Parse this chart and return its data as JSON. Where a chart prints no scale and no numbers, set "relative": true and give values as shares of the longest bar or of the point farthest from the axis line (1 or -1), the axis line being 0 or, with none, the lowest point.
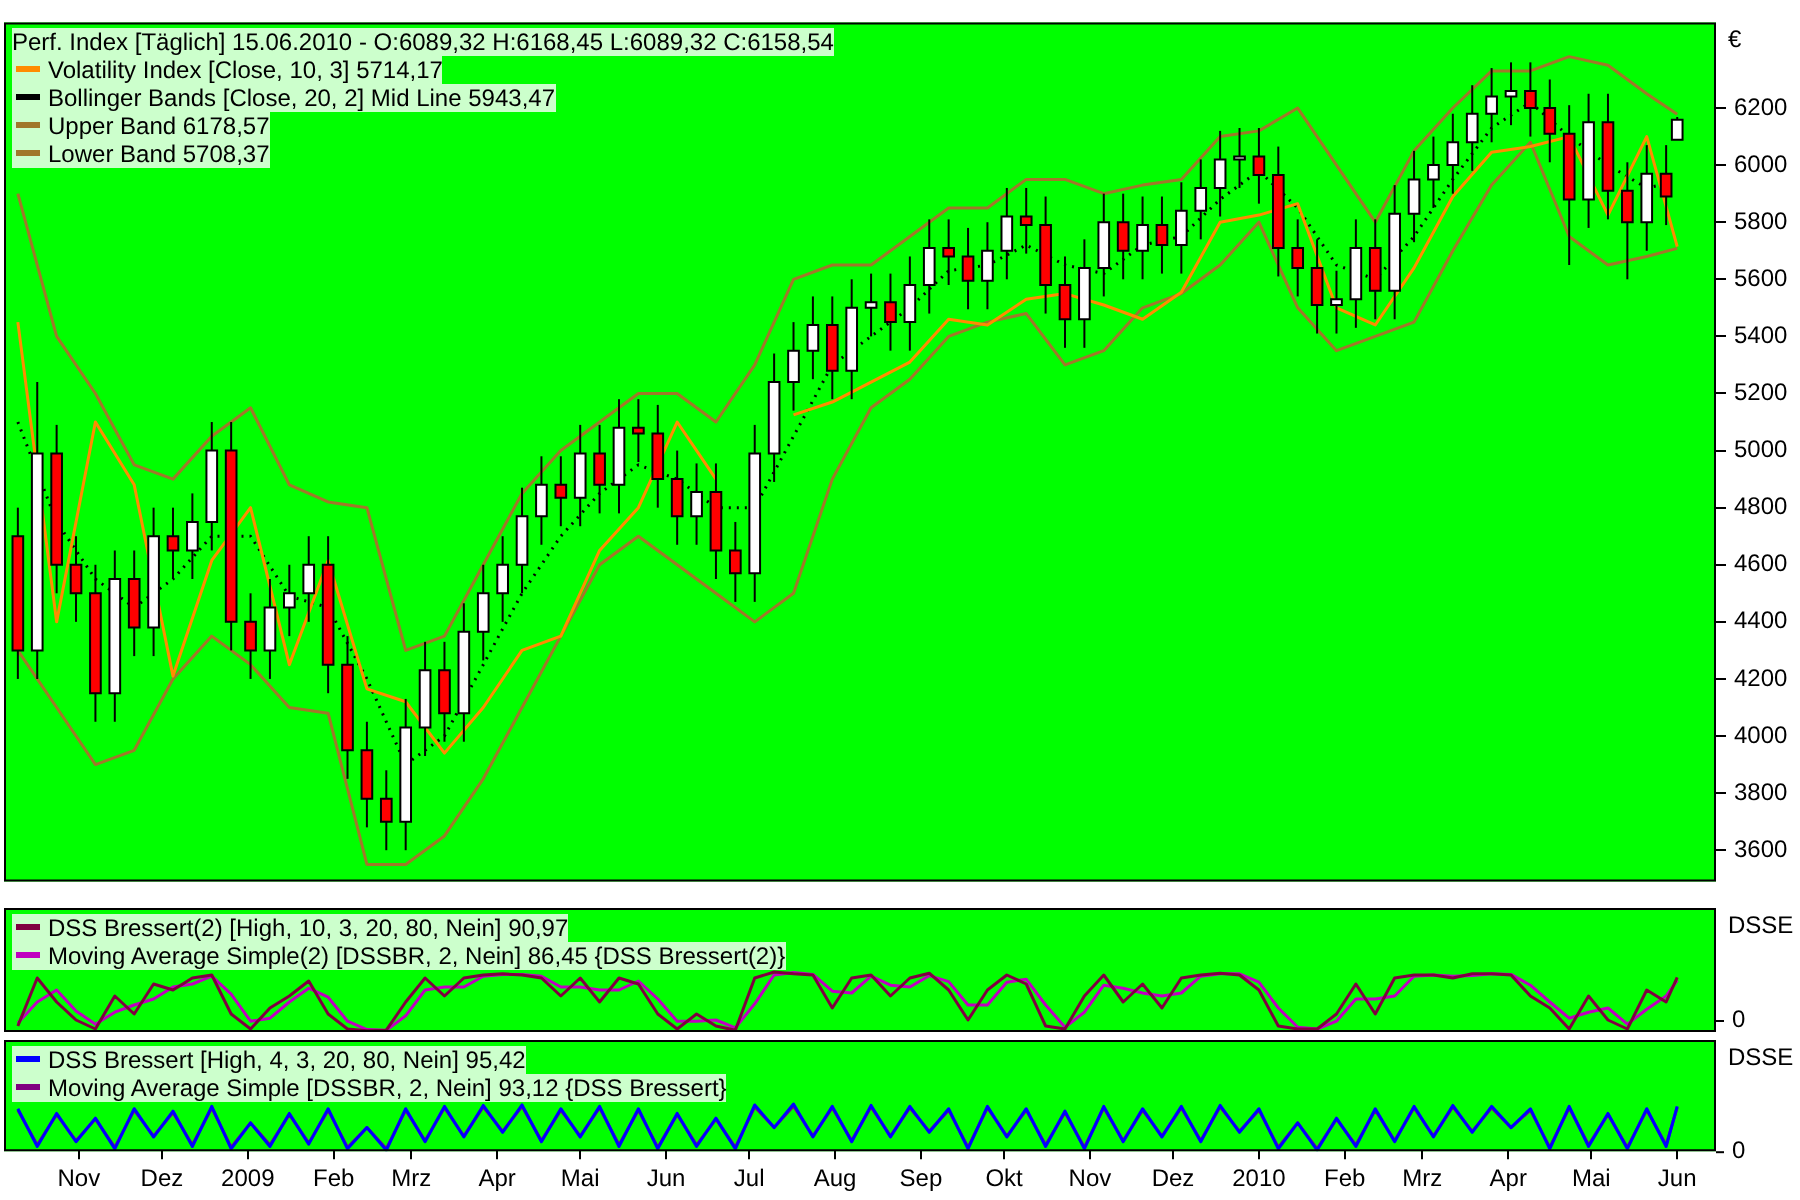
{
  "chart_data": [
    {
      "type": "candlestick",
      "title": "Perf. Index [Täglich] 15.06.2010 - O:6089,32 H:6168,45 L:6089,32 C:6158,54",
      "ylabel": "€",
      "legend": "top left",
      "tick_labels": "y",
      "xlim": [
        "2008-10-19",
        "2010-06-29"
      ],
      "ylim": [
        3490,
        6500
      ],
      "yticks": [
        3600,
        3800,
        4000,
        4200,
        4400,
        4600,
        4800,
        5000,
        5200,
        5400,
        5600,
        5800,
        6000,
        6200
      ],
      "x": [
        "2008-10-24",
        "2008-10-31",
        "2008-11-07",
        "2008-11-14",
        "2008-11-21",
        "2008-11-28",
        "2008-12-05",
        "2008-12-12",
        "2008-12-19",
        "2008-12-26",
        "2009-01-02",
        "2009-01-09",
        "2009-01-16",
        "2009-01-23",
        "2009-01-30",
        "2009-02-06",
        "2009-02-13",
        "2009-02-20",
        "2009-02-27",
        "2009-03-06",
        "2009-03-13",
        "2009-03-20",
        "2009-03-27",
        "2009-04-03",
        "2009-04-10",
        "2009-04-17",
        "2009-04-24",
        "2009-05-01",
        "2009-05-08",
        "2009-05-15",
        "2009-05-22",
        "2009-05-29",
        "2009-06-05",
        "2009-06-12",
        "2009-06-19",
        "2009-06-26",
        "2009-07-03",
        "2009-07-10",
        "2009-07-17",
        "2009-07-24",
        "2009-07-31",
        "2009-08-07",
        "2009-08-14",
        "2009-08-21",
        "2009-08-28",
        "2009-09-04",
        "2009-09-11",
        "2009-09-18",
        "2009-09-25",
        "2009-10-02",
        "2009-10-09",
        "2009-10-16",
        "2009-10-23",
        "2009-10-30",
        "2009-11-06",
        "2009-11-13",
        "2009-11-20",
        "2009-11-27",
        "2009-12-04",
        "2009-12-11",
        "2009-12-18",
        "2009-12-25",
        "2010-01-01",
        "2010-01-08",
        "2010-01-15",
        "2010-01-22",
        "2010-01-29",
        "2010-02-05",
        "2010-02-12",
        "2010-02-19",
        "2010-02-26",
        "2010-03-05",
        "2010-03-12",
        "2010-03-19",
        "2010-03-26",
        "2010-04-02",
        "2010-04-09",
        "2010-04-16",
        "2010-04-23",
        "2010-04-30",
        "2010-05-07",
        "2010-05-14",
        "2010-05-21",
        "2010-05-28",
        "2010-06-04",
        "2010-06-11",
        "2010-06-15"
      ],
      "ohlc": [
        [
          4700,
          4800,
          4200,
          4300
        ],
        [
          4300,
          5240,
          4200,
          4990
        ],
        [
          4990,
          5090,
          4500,
          4600
        ],
        [
          4600,
          4700,
          4400,
          4500
        ],
        [
          4500,
          4600,
          4050,
          4150
        ],
        [
          4150,
          4650,
          4050,
          4550
        ],
        [
          4550,
          4650,
          4280,
          4380
        ],
        [
          4380,
          4800,
          4280,
          4700
        ],
        [
          4700,
          4800,
          4550,
          4650
        ],
        [
          4650,
          4850,
          4550,
          4750
        ],
        [
          4750,
          5100,
          4650,
          5000
        ],
        [
          5000,
          5100,
          4300,
          4400
        ],
        [
          4400,
          4500,
          4200,
          4300
        ],
        [
          4300,
          4550,
          4200,
          4450
        ],
        [
          4450,
          4600,
          4350,
          4500
        ],
        [
          4500,
          4700,
          4400,
          4600
        ],
        [
          4600,
          4700,
          4150,
          4250
        ],
        [
          4250,
          4350,
          3850,
          3950
        ],
        [
          3950,
          4050,
          3680,
          3780
        ],
        [
          3780,
          3880,
          3600,
          3700
        ],
        [
          3700,
          4130,
          3600,
          4030
        ],
        [
          4030,
          4330,
          3930,
          4230
        ],
        [
          4230,
          4330,
          3980,
          4080
        ],
        [
          4080,
          4465,
          3980,
          4365
        ],
        [
          4365,
          4600,
          4265,
          4500
        ],
        [
          4500,
          4700,
          4400,
          4600
        ],
        [
          4600,
          4870,
          4500,
          4770
        ],
        [
          4770,
          4980,
          4670,
          4880
        ],
        [
          4880,
          4980,
          4735,
          4835
        ],
        [
          4835,
          5090,
          4735,
          4990
        ],
        [
          4990,
          5090,
          4780,
          4880
        ],
        [
          4880,
          5180,
          4780,
          5080
        ],
        [
          5080,
          5180,
          4960,
          5060
        ],
        [
          5060,
          5160,
          4800,
          4900
        ],
        [
          4900,
          5000,
          4670,
          4770
        ],
        [
          4770,
          4955,
          4670,
          4855
        ],
        [
          4855,
          4955,
          4550,
          4650
        ],
        [
          4650,
          4750,
          4470,
          4570
        ],
        [
          4570,
          5090,
          4470,
          4990
        ],
        [
          4990,
          5340,
          4890,
          5240
        ],
        [
          5240,
          5450,
          5140,
          5350
        ],
        [
          5350,
          5540,
          5250,
          5440
        ],
        [
          5440,
          5540,
          5180,
          5280
        ],
        [
          5280,
          5600,
          5180,
          5500
        ],
        [
          5500,
          5620,
          5400,
          5520
        ],
        [
          5520,
          5620,
          5350,
          5450
        ],
        [
          5450,
          5680,
          5350,
          5580
        ],
        [
          5580,
          5810,
          5480,
          5710
        ],
        [
          5710,
          5810,
          5580,
          5680
        ],
        [
          5680,
          5780,
          5495,
          5595
        ],
        [
          5595,
          5800,
          5495,
          5700
        ],
        [
          5700,
          5920,
          5600,
          5820
        ],
        [
          5820,
          5920,
          5690,
          5790
        ],
        [
          5790,
          5890,
          5480,
          5580
        ],
        [
          5580,
          5680,
          5360,
          5460
        ],
        [
          5460,
          5740,
          5360,
          5640
        ],
        [
          5640,
          5900,
          5540,
          5800
        ],
        [
          5800,
          5900,
          5600,
          5700
        ],
        [
          5700,
          5890,
          5600,
          5790
        ],
        [
          5790,
          5890,
          5620,
          5720
        ],
        [
          5720,
          5940,
          5620,
          5840
        ],
        [
          5840,
          6020,
          5740,
          5920
        ],
        [
          5920,
          6120,
          5820,
          6020
        ],
        [
          6020,
          6130,
          5920,
          6030
        ],
        [
          6030,
          6130,
          5865,
          5965
        ],
        [
          5965,
          6065,
          5610,
          5710
        ],
        [
          5710,
          5810,
          5540,
          5640
        ],
        [
          5640,
          5740,
          5410,
          5510
        ],
        [
          5510,
          5630,
          5410,
          5530
        ],
        [
          5530,
          5810,
          5430,
          5710
        ],
        [
          5710,
          5810,
          5460,
          5560
        ],
        [
          5560,
          5930,
          5460,
          5830
        ],
        [
          5830,
          6050,
          5730,
          5950
        ],
        [
          5950,
          6100,
          5850,
          6000
        ],
        [
          6000,
          6180,
          5900,
          6080
        ],
        [
          6080,
          6280,
          5980,
          6180
        ],
        [
          6180,
          6340,
          6080,
          6240
        ],
        [
          6240,
          6360,
          6140,
          6260
        ],
        [
          6260,
          6360,
          6100,
          6200
        ],
        [
          6200,
          6300,
          6010,
          6110
        ],
        [
          6110,
          6210,
          5650,
          5880
        ],
        [
          5880,
          6250,
          5780,
          6150
        ],
        [
          6150,
          6250,
          5810,
          5910
        ],
        [
          5910,
          6010,
          5600,
          5800
        ],
        [
          5800,
          6070,
          5700,
          5970
        ],
        [
          5970,
          6070,
          5790,
          5890
        ],
        [
          6089.32,
          6168.45,
          6089.32,
          6158.54
        ]
      ],
      "series": [
        {
          "type": "line",
          "name": "Volatility Index [Close, 10, 3] 5714,17",
          "color": "#ff8c00",
          "x": [
            "2008-10-24",
            "2008-11-07",
            "2008-11-21",
            "2008-12-05",
            "2008-12-19",
            "2009-01-02",
            "2009-01-16",
            "2009-01-30",
            "2009-02-13",
            "2009-02-27",
            "2009-03-13",
            "2009-03-27",
            "2009-04-10",
            "2009-04-24",
            "2009-05-08",
            "2009-05-22",
            "2009-06-05",
            "2009-06-19",
            "2009-07-03",
            "2009-07-17",
            "2009-07-31",
            "2009-08-14",
            "2009-08-28",
            "2009-09-11",
            "2009-09-25",
            "2009-10-09",
            "2009-10-23",
            "2009-11-06",
            "2009-11-20",
            "2009-12-04",
            "2009-12-18",
            "2010-01-01",
            "2010-01-15",
            "2010-01-29",
            "2010-02-12",
            "2010-02-26",
            "2010-03-12",
            "2010-03-26",
            "2010-04-09",
            "2010-04-23",
            "2010-05-07",
            "2010-05-21",
            "2010-06-04",
            "2010-06-15"
          ],
          "values": [
            5450,
            4400,
            5100,
            4880,
            4210,
            4615,
            4800,
            4250,
            4615,
            4165,
            4120,
            3940,
            4100,
            4300,
            4350,
            4650,
            4800,
            5100,
            4900,
            null,
            5125,
            5170,
            5240,
            5310,
            5460,
            5440,
            5530,
            5550,
            5510,
            5460,
            5555,
            5800,
            5825,
            5865,
            5500,
            5440,
            5640,
            5890,
            6045,
            6065,
            6100,
            5825,
            6100,
            5714.17
          ]
        },
        {
          "type": "line",
          "name": "Bollinger Bands [Close, 20, 2] Mid Line 5943,47",
          "color": "#000000",
          "line_style": "dotted",
          "x": [
            "2008-10-24",
            "2008-11-07",
            "2008-11-21",
            "2008-12-05",
            "2008-12-19",
            "2009-01-02",
            "2009-01-16",
            "2009-01-30",
            "2009-02-13",
            "2009-02-27",
            "2009-03-13",
            "2009-03-27",
            "2009-04-10",
            "2009-04-24",
            "2009-05-08",
            "2009-05-22",
            "2009-06-05",
            "2009-06-19",
            "2009-07-03",
            "2009-07-17",
            "2009-07-31",
            "2009-08-14",
            "2009-08-28",
            "2009-09-11",
            "2009-09-25",
            "2009-10-09",
            "2009-10-23",
            "2009-11-06",
            "2009-11-20",
            "2009-12-04",
            "2009-12-18",
            "2010-01-01",
            "2010-01-15",
            "2010-01-29",
            "2010-02-12",
            "2010-02-26",
            "2010-03-12",
            "2010-03-26",
            "2010-04-09",
            "2010-04-23",
            "2010-05-07",
            "2010-05-21",
            "2010-06-04",
            "2010-06-15"
          ],
          "values": [
            5100,
            4750,
            4550,
            4450,
            4550,
            4700,
            4700,
            4490,
            4450,
            4200,
            3900,
            4000,
            4250,
            4500,
            4700,
            4850,
            4950,
            4900,
            4800,
            4800,
            5050,
            5300,
            5400,
            5500,
            5630,
            5650,
            5720,
            5650,
            5620,
            5720,
            5750,
            5880,
            5980,
            5850,
            5650,
            5600,
            5750,
            5950,
            6130,
            6220,
            6100,
            6000,
            5920,
            5943.47
          ]
        },
        {
          "type": "line",
          "name": "Upper Band 6178,57",
          "color": "#a0782a",
          "x": [
            "2008-10-24",
            "2008-11-07",
            "2008-11-21",
            "2008-12-05",
            "2008-12-19",
            "2009-01-02",
            "2009-01-16",
            "2009-01-30",
            "2009-02-13",
            "2009-02-27",
            "2009-03-13",
            "2009-03-27",
            "2009-04-10",
            "2009-04-24",
            "2009-05-08",
            "2009-05-22",
            "2009-06-05",
            "2009-06-19",
            "2009-07-03",
            "2009-07-17",
            "2009-07-31",
            "2009-08-14",
            "2009-08-28",
            "2009-09-11",
            "2009-09-25",
            "2009-10-09",
            "2009-10-23",
            "2009-11-06",
            "2009-11-20",
            "2009-12-04",
            "2009-12-18",
            "2010-01-01",
            "2010-01-15",
            "2010-01-29",
            "2010-02-12",
            "2010-02-26",
            "2010-03-12",
            "2010-03-26",
            "2010-04-09",
            "2010-04-23",
            "2010-05-07",
            "2010-05-21",
            "2010-06-04",
            "2010-06-15"
          ],
          "values": [
            5900,
            5400,
            5200,
            4950,
            4900,
            5050,
            5150,
            4880,
            4820,
            4800,
            4300,
            4350,
            4600,
            4850,
            5000,
            5100,
            5200,
            5200,
            5100,
            5300,
            5600,
            5650,
            5650,
            5750,
            5850,
            5850,
            5950,
            5950,
            5900,
            5930,
            5950,
            6100,
            6120,
            6200,
            6000,
            5800,
            6050,
            6200,
            6330,
            6330,
            6380,
            6350,
            6250,
            6178.57
          ]
        },
        {
          "type": "line",
          "name": "Lower Band 5708,37",
          "color": "#a0782a",
          "x": [
            "2008-10-24",
            "2008-11-07",
            "2008-11-21",
            "2008-12-05",
            "2008-12-19",
            "2009-01-02",
            "2009-01-16",
            "2009-01-30",
            "2009-02-13",
            "2009-02-27",
            "2009-03-13",
            "2009-03-27",
            "2009-04-10",
            "2009-04-24",
            "2009-05-08",
            "2009-05-22",
            "2009-06-05",
            "2009-06-19",
            "2009-07-03",
            "2009-07-17",
            "2009-07-31",
            "2009-08-14",
            "2009-08-28",
            "2009-09-11",
            "2009-09-25",
            "2009-10-09",
            "2009-10-23",
            "2009-11-06",
            "2009-11-20",
            "2009-12-04",
            "2009-12-18",
            "2010-01-01",
            "2010-01-15",
            "2010-01-29",
            "2010-02-12",
            "2010-02-26",
            "2010-03-12",
            "2010-03-26",
            "2010-04-09",
            "2010-04-23",
            "2010-05-07",
            "2010-05-21",
            "2010-06-04",
            "2010-06-15"
          ],
          "values": [
            4300,
            4100,
            3900,
            3950,
            4200,
            4350,
            4250,
            4100,
            4080,
            3550,
            3550,
            3650,
            3850,
            4100,
            4350,
            4600,
            4700,
            4600,
            4500,
            4400,
            4500,
            4900,
            5150,
            5250,
            5400,
            5450,
            5480,
            5300,
            5350,
            5500,
            5550,
            5650,
            5800,
            5500,
            5350,
            5400,
            5450,
            5700,
            5930,
            6080,
            5750,
            5650,
            5680,
            5708.37
          ]
        }
      ]
    },
    {
      "type": "line",
      "relative": true,
      "ylabel": "DSSE",
      "annotations": [
        "0"
      ],
      "legend": "top left",
      "tick_labels": false,
      "xlim": [
        "2008-10-19",
        "2010-06-29"
      ],
      "x": [
        "2008-10-24",
        "2008-10-31",
        "2008-11-07",
        "2008-11-14",
        "2008-11-21",
        "2008-11-28",
        "2008-12-05",
        "2008-12-12",
        "2008-12-19",
        "2008-12-26",
        "2009-01-02",
        "2009-01-09",
        "2009-01-16",
        "2009-01-23",
        "2009-01-30",
        "2009-02-06",
        "2009-02-13",
        "2009-02-20",
        "2009-02-27",
        "2009-03-06",
        "2009-03-13",
        "2009-03-20",
        "2009-03-27",
        "2009-04-03",
        "2009-04-10",
        "2009-04-17",
        "2009-04-24",
        "2009-05-01",
        "2009-05-08",
        "2009-05-15",
        "2009-05-22",
        "2009-05-29",
        "2009-06-05",
        "2009-06-12",
        "2009-06-19",
        "2009-06-26",
        "2009-07-03",
        "2009-07-10",
        "2009-07-17",
        "2009-07-24",
        "2009-07-31",
        "2009-08-07",
        "2009-08-14",
        "2009-08-21",
        "2009-08-28",
        "2009-09-04",
        "2009-09-11",
        "2009-09-18",
        "2009-09-25",
        "2009-10-02",
        "2009-10-09",
        "2009-10-16",
        "2009-10-23",
        "2009-10-30",
        "2009-11-06",
        "2009-11-13",
        "2009-11-20",
        "2009-11-27",
        "2009-12-04",
        "2009-12-11",
        "2009-12-18",
        "2009-12-25",
        "2010-01-01",
        "2010-01-08",
        "2010-01-15",
        "2010-01-22",
        "2010-01-29",
        "2010-02-05",
        "2010-02-12",
        "2010-02-19",
        "2010-02-26",
        "2010-03-05",
        "2010-03-12",
        "2010-03-19",
        "2010-03-26",
        "2010-04-02",
        "2010-04-09",
        "2010-04-16",
        "2010-04-23",
        "2010-04-30",
        "2010-05-07",
        "2010-05-14",
        "2010-05-21",
        "2010-05-28",
        "2010-06-04",
        "2010-06-11",
        "2010-06-15"
      ],
      "series": [
        {
          "name": "DSS Bressert(2) [High, 10, 3, 20, 80, Nein] 90,97",
          "color": "#800040",
          "values": [
            0.1,
            0.9,
            0.5,
            0.2,
            0.05,
            0.6,
            0.3,
            0.8,
            0.7,
            0.9,
            0.95,
            0.3,
            0.05,
            0.4,
            0.6,
            0.85,
            0.3,
            0.05,
            0.02,
            0.03,
            0.5,
            0.9,
            0.6,
            0.9,
            0.95,
            0.97,
            0.95,
            0.9,
            0.6,
            0.9,
            0.5,
            0.9,
            0.8,
            0.3,
            0.05,
            0.3,
            0.1,
            0.03,
            0.9,
            1,
            0.97,
            0.95,
            0.4,
            0.9,
            0.95,
            0.6,
            0.9,
            0.98,
            0.7,
            0.2,
            0.7,
            0.95,
            0.8,
            0.1,
            0.05,
            0.6,
            0.95,
            0.5,
            0.8,
            0.4,
            0.9,
            0.95,
            0.98,
            0.95,
            0.7,
            0.1,
            0.05,
            0.05,
            0.3,
            0.8,
            0.3,
            0.9,
            0.95,
            0.95,
            0.9,
            0.97,
            0.97,
            0.95,
            0.6,
            0.4,
            0.05,
            0.6,
            0.2,
            0.05,
            0.7,
            0.5,
            0.91
          ]
        },
        {
          "name": "Moving Average Simple(2) [DSSBR, 2, Nein] 86,45 {DSS Bressert(2)}",
          "color": "#c000c0",
          "values": [
            0.15,
            0.5,
            0.7,
            0.35,
            0.13,
            0.33,
            0.45,
            0.55,
            0.75,
            0.8,
            0.93,
            0.63,
            0.18,
            0.23,
            0.5,
            0.73,
            0.58,
            0.18,
            0.04,
            0.03,
            0.27,
            0.7,
            0.75,
            0.75,
            0.93,
            0.96,
            0.96,
            0.93,
            0.75,
            0.75,
            0.7,
            0.7,
            0.85,
            0.55,
            0.18,
            0.18,
            0.2,
            0.07,
            0.47,
            0.95,
            0.99,
            0.96,
            0.68,
            0.65,
            0.93,
            0.78,
            0.75,
            0.94,
            0.84,
            0.45,
            0.45,
            0.83,
            0.88,
            0.45,
            0.08,
            0.33,
            0.78,
            0.73,
            0.65,
            0.6,
            0.65,
            0.93,
            0.97,
            0.97,
            0.83,
            0.4,
            0.08,
            0.05,
            0.18,
            0.55,
            0.55,
            0.6,
            0.93,
            0.95,
            0.93,
            0.94,
            0.97,
            0.96,
            0.78,
            0.5,
            0.23,
            0.33,
            0.4,
            0.13,
            0.38,
            0.6,
            0.86
          ]
        }
      ]
    },
    {
      "type": "line",
      "relative": true,
      "ylabel": "DSSE",
      "annotations": [
        "0"
      ],
      "legend": "top left",
      "tick_labels": "x",
      "xlim": [
        "2008-10-19",
        "2010-06-29"
      ],
      "xticks": [
        {
          "value": "2008-11-15",
          "label": "Nov"
        },
        {
          "value": "2008-12-15",
          "label": "Dez"
        },
        {
          "value": "2009-01-15",
          "label": "2009"
        },
        {
          "value": "2009-02-15",
          "label": "Feb"
        },
        {
          "value": "2009-03-15",
          "label": "Mrz"
        },
        {
          "value": "2009-04-15",
          "label": "Apr"
        },
        {
          "value": "2009-05-15",
          "label": "Mai"
        },
        {
          "value": "2009-06-15",
          "label": "Jun"
        },
        {
          "value": "2009-07-15",
          "label": "Jul"
        },
        {
          "value": "2009-08-15",
          "label": "Aug"
        },
        {
          "value": "2009-09-15",
          "label": "Sep"
        },
        {
          "value": "2009-10-15",
          "label": "Okt"
        },
        {
          "value": "2009-11-15",
          "label": "Nov"
        },
        {
          "value": "2009-12-15",
          "label": "Dez"
        },
        {
          "value": "2010-01-15",
          "label": "2010"
        },
        {
          "value": "2010-02-15",
          "label": "Feb"
        },
        {
          "value": "2010-03-15",
          "label": "Mrz"
        },
        {
          "value": "2010-04-15",
          "label": "Apr"
        },
        {
          "value": "2010-05-15",
          "label": "Mai"
        },
        {
          "value": "2010-06-15",
          "label": "Jun"
        }
      ],
      "x": [
        "2008-10-24",
        "2008-10-31",
        "2008-11-07",
        "2008-11-14",
        "2008-11-21",
        "2008-11-28",
        "2008-12-05",
        "2008-12-12",
        "2008-12-19",
        "2008-12-26",
        "2009-01-02",
        "2009-01-09",
        "2009-01-16",
        "2009-01-23",
        "2009-01-30",
        "2009-02-06",
        "2009-02-13",
        "2009-02-20",
        "2009-02-27",
        "2009-03-06",
        "2009-03-13",
        "2009-03-20",
        "2009-03-27",
        "2009-04-03",
        "2009-04-10",
        "2009-04-17",
        "2009-04-24",
        "2009-05-01",
        "2009-05-08",
        "2009-05-15",
        "2009-05-22",
        "2009-05-29",
        "2009-06-05",
        "2009-06-12",
        "2009-06-19",
        "2009-06-26",
        "2009-07-03",
        "2009-07-10",
        "2009-07-17",
        "2009-07-24",
        "2009-07-31",
        "2009-08-07",
        "2009-08-14",
        "2009-08-21",
        "2009-08-28",
        "2009-09-04",
        "2009-09-11",
        "2009-09-18",
        "2009-09-25",
        "2009-10-02",
        "2009-10-09",
        "2009-10-16",
        "2009-10-23",
        "2009-10-30",
        "2009-11-06",
        "2009-11-13",
        "2009-11-20",
        "2009-11-27",
        "2009-12-04",
        "2009-12-11",
        "2009-12-18",
        "2009-12-25",
        "2010-01-01",
        "2010-01-08",
        "2010-01-15",
        "2010-01-22",
        "2010-01-29",
        "2010-02-05",
        "2010-02-12",
        "2010-02-19",
        "2010-02-26",
        "2010-03-05",
        "2010-03-12",
        "2010-03-19",
        "2010-03-26",
        "2010-04-02",
        "2010-04-09",
        "2010-04-16",
        "2010-04-23",
        "2010-04-30",
        "2010-05-07",
        "2010-05-14",
        "2010-05-21",
        "2010-05-28",
        "2010-06-04",
        "2010-06-11",
        "2010-06-15"
      ],
      "series": [
        {
          "name": "DSS Bressert [High, 4, 3, 20, 80, Nein] 95,42",
          "color": "#0000ff",
          "values": [
            0.9,
            0.1,
            0.8,
            0.2,
            0.7,
            0.05,
            0.9,
            0.3,
            0.85,
            0.1,
            0.95,
            0.05,
            0.6,
            0.1,
            0.8,
            0.15,
            0.9,
            0.05,
            0.5,
            0.02,
            0.9,
            0.2,
            0.95,
            0.3,
            0.97,
            0.4,
            0.98,
            0.2,
            0.9,
            0.3,
            0.95,
            0.1,
            0.9,
            0.05,
            0.8,
            0.1,
            0.7,
            0.05,
            0.98,
            0.5,
            1,
            0.3,
            0.95,
            0.2,
            0.97,
            0.3,
            0.95,
            0.4,
            0.9,
            0.05,
            0.95,
            0.3,
            0.9,
            0.1,
            0.85,
            0.05,
            0.95,
            0.2,
            0.9,
            0.3,
            0.95,
            0.2,
            0.97,
            0.4,
            0.9,
            0.05,
            0.6,
            0.02,
            0.7,
            0.1,
            0.9,
            0.2,
            0.95,
            0.3,
            0.97,
            0.4,
            0.95,
            0.5,
            0.9,
            0.05,
            0.95,
            0.1,
            0.8,
            0.05,
            0.9,
            0.1,
            0.95
          ]
        },
        {
          "name": "Moving Average Simple [DSSBR, 2, Nein] 93,12 {DSS Bressert}",
          "color": "#800080",
          "values": [
            0.87,
            0.13,
            0.78,
            0.22,
            0.68,
            0.08,
            0.87,
            0.32,
            0.82,
            0.13,
            0.92,
            0.08,
            0.6,
            0.13,
            0.78,
            0.17,
            0.87,
            0.08,
            0.5,
            0.05,
            0.87,
            0.22,
            0.92,
            0.32,
            0.94,
            0.42,
            0.95,
            0.22,
            0.87,
            0.32,
            0.92,
            0.13,
            0.87,
            0.08,
            0.78,
            0.13,
            0.68,
            0.08,
            0.94,
            0.5,
            0.96,
            0.32,
            0.92,
            0.22,
            0.94,
            0.32,
            0.92,
            0.42,
            0.87,
            0.08,
            0.92,
            0.32,
            0.87,
            0.13,
            0.82,
            0.08,
            0.92,
            0.22,
            0.87,
            0.32,
            0.92,
            0.22,
            0.94,
            0.42,
            0.87,
            0.08,
            0.6,
            0.05,
            0.68,
            0.13,
            0.87,
            0.22,
            0.92,
            0.32,
            0.94,
            0.42,
            0.92,
            0.5,
            0.87,
            0.08,
            0.92,
            0.13,
            0.78,
            0.08,
            0.87,
            0.13,
            0.93
          ]
        }
      ]
    }
  ]
}
